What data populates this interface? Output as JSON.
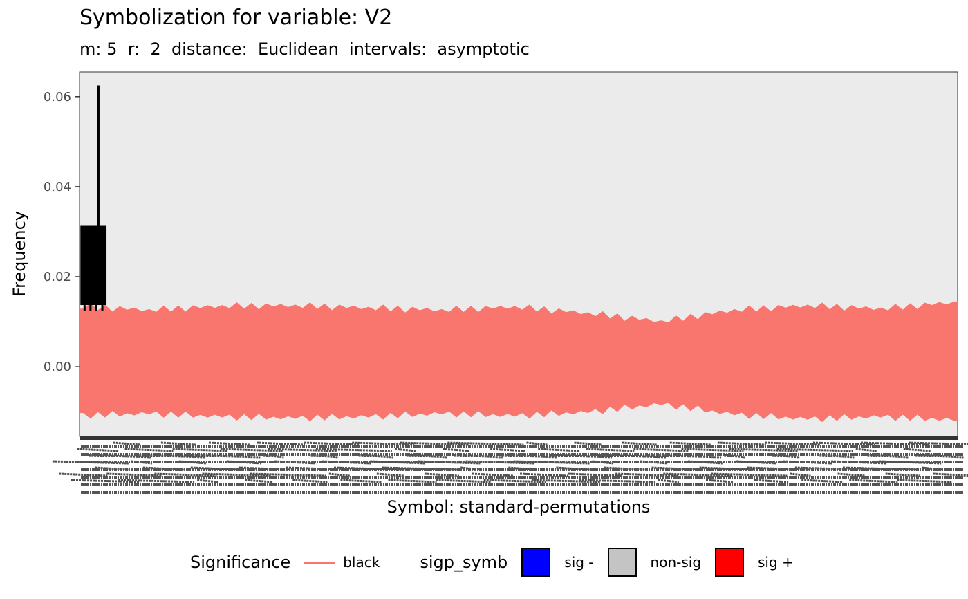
{
  "chart_data": {
    "type": "area",
    "title": "Symbolization for variable: V2",
    "subtitle": "m: 5  r:  2  distance:  Euclidean  intervals:  asymptotic",
    "xlabel": "Symbol: standard-permutations",
    "ylabel": "Frequency",
    "ylim": [
      -0.0155,
      0.0655
    ],
    "y_ticks": [
      0.06,
      0.04,
      0.02,
      0.0
    ],
    "y_tick_labels": [
      "0.06",
      "0.04",
      "0.02",
      "0.00"
    ],
    "symbol_count": 120,
    "grid": false,
    "background": "#ebebeb",
    "band_color": "#f8766d",
    "band": {
      "description_values": "confidence interval band for every permutation symbol",
      "x": [
        1,
        10,
        20,
        30,
        40,
        50,
        60,
        70,
        80,
        90,
        100,
        110,
        120
      ],
      "upper": [
        0.0133,
        0.0125,
        0.0134,
        0.0135,
        0.013,
        0.0125,
        0.0132,
        0.0118,
        0.01,
        0.0125,
        0.0135,
        0.0128,
        0.0142
      ],
      "lower": [
        -0.0107,
        -0.0103,
        -0.011,
        -0.0113,
        -0.011,
        -0.0103,
        -0.0108,
        -0.01,
        -0.0082,
        -0.0105,
        -0.0115,
        -0.011,
        -0.0117
      ]
    },
    "observed": {
      "x_range": [
        1,
        4
      ],
      "upper_block": 0.0313,
      "lower_block": 0.0137,
      "peak": 0.0625,
      "peak_x": 3,
      "color": "#000000"
    },
    "legend": {
      "position": "bottom",
      "significance_title": "Significance",
      "significance_label": "black",
      "sigp_title": "sigp_symb",
      "items": [
        {
          "label": "sig -",
          "color": "#0000ff"
        },
        {
          "label": "non-sig",
          "color": "#c4c4c4"
        },
        {
          "label": "sig +",
          "color": "#ff0000"
        }
      ]
    }
  }
}
